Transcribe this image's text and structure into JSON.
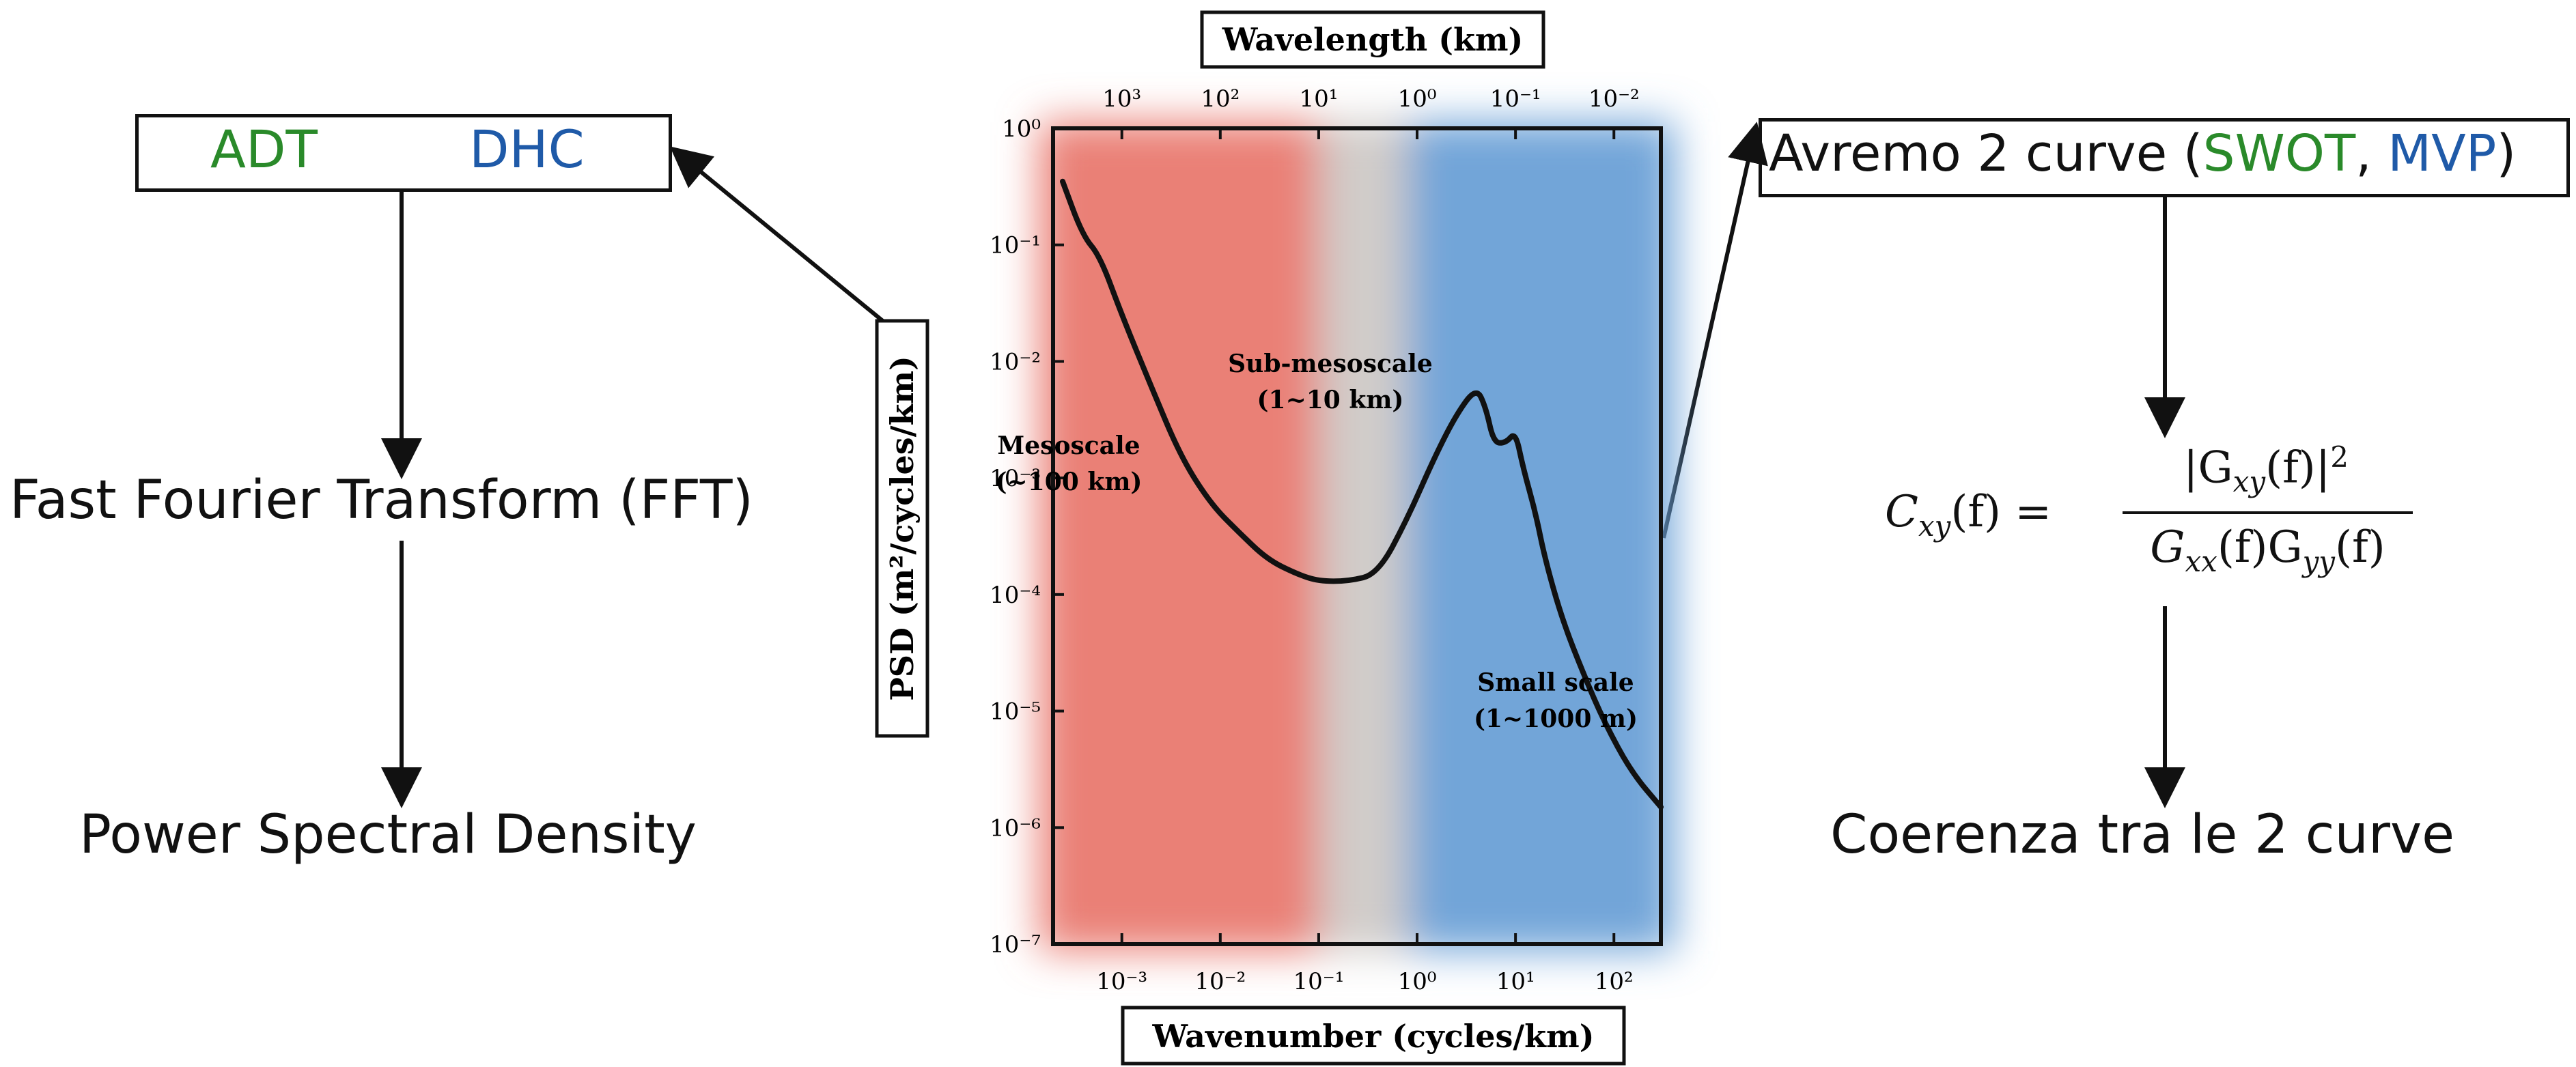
{
  "left_flow": {
    "box_left": "ADT",
    "box_right": "DHC",
    "step1": "Fast Fourier Transform (FFT)",
    "step2": "Power Spectral Density"
  },
  "right_flow": {
    "box_prefix": "Avremo 2 curve (",
    "box_swot": "SWOT",
    "box_sep": ", ",
    "box_mvp": "MVP",
    "box_suffix": ")",
    "formula_lhs": "C",
    "formula_lhs_sub": "xy",
    "formula_lhs_arg": "(f) =",
    "formula_num": "|G",
    "formula_num_sub": "xy",
    "formula_num_arg": "(f)|",
    "formula_num_sup": "2",
    "formula_den_a": "G",
    "formula_den_a_sub": "xx",
    "formula_den_mid": "(f)G",
    "formula_den_b_sub": "yy",
    "formula_den_end": "(f)",
    "result": "Coerenza tra le 2 curve"
  },
  "colors": {
    "green": "#2a8a2a",
    "blue": "#1f5aa8",
    "meso": "#e9796f",
    "submeso": "#cfc9c6",
    "small": "#6aa0d6"
  },
  "chart_data": {
    "type": "line",
    "xlabel": "Wavenumber (cycles/km)",
    "top_xlabel": "Wavelength (km)",
    "ylabel": "PSD (m²/cycles/km)",
    "x_scale": "log",
    "y_scale": "log",
    "xlim": [
      0.0002,
      300
    ],
    "ylim": [
      1e-07,
      1
    ],
    "x_ticks": [
      "10⁻³",
      "10⁻²",
      "10⁻¹",
      "10⁰",
      "10¹",
      "10²"
    ],
    "top_ticks": [
      "10³",
      "10²",
      "10¹",
      "10⁰",
      "10⁻¹",
      "10⁻²"
    ],
    "y_ticks": [
      "10⁰",
      "10⁻¹",
      "10⁻²",
      "10⁻³",
      "10⁻⁴",
      "10⁻⁵",
      "10⁻⁶",
      "10⁻⁷"
    ],
    "regions": [
      {
        "name": "Mesoscale",
        "range": "(~100 km)"
      },
      {
        "name": "Sub-mesoscale",
        "range": "(1~10 km)"
      },
      {
        "name": "Small scale",
        "range": "(1~1000 m)"
      }
    ],
    "series": [
      {
        "x": [
          0.00025,
          0.0004,
          0.0006,
          0.001,
          0.002,
          0.004,
          0.008,
          0.015,
          0.03,
          0.06,
          0.1,
          0.2,
          0.4,
          0.8,
          1.5,
          2.5,
          4,
          5,
          6,
          8,
          10,
          12,
          16,
          20,
          30,
          50,
          80,
          150,
          300
        ],
        "y": [
          0.35,
          0.12,
          0.08,
          0.025,
          0.006,
          0.0015,
          0.0006,
          0.00035,
          0.0002,
          0.00015,
          0.00013,
          0.00013,
          0.00015,
          0.00045,
          0.0015,
          0.0035,
          0.006,
          0.004,
          0.002,
          0.002,
          0.0025,
          0.0012,
          0.0005,
          0.0002,
          6e-05,
          2e-05,
          8e-06,
          3e-06,
          1.5e-06
        ]
      }
    ]
  }
}
